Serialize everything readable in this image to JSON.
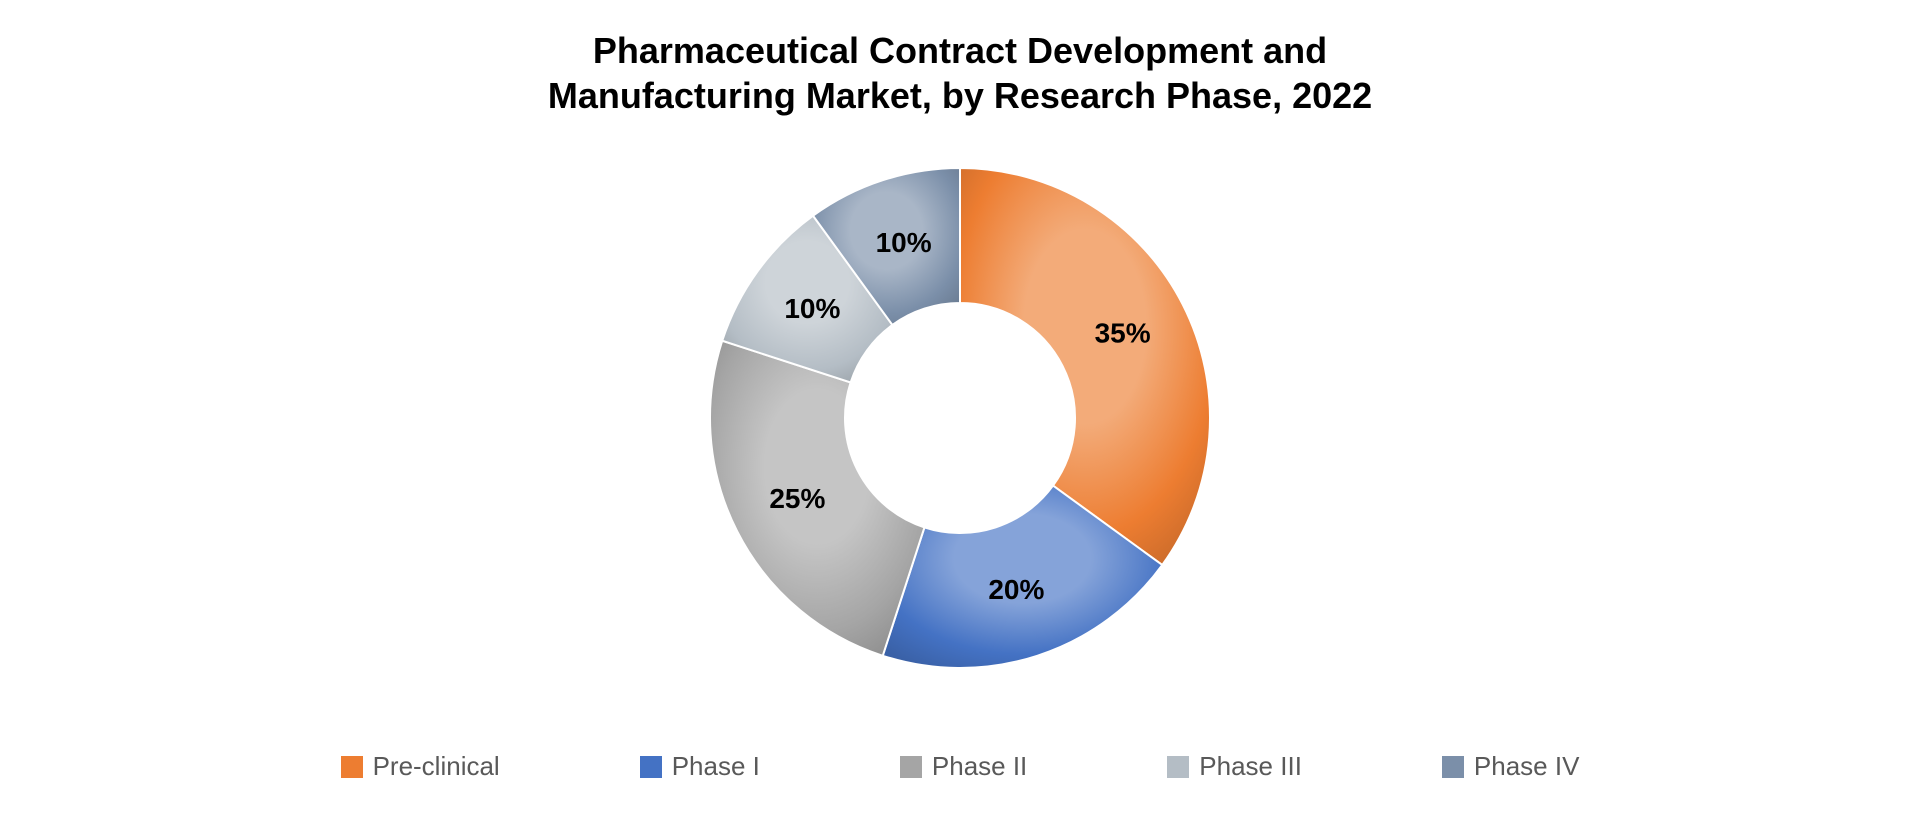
{
  "chart": {
    "type": "donut",
    "title": "Pharmaceutical Contract Development and\nManufacturing Market, by Research Phase, 2022",
    "title_fontsize": 36,
    "title_fontweight": 600,
    "title_color": "#000000",
    "label_fontsize": 28,
    "label_fontweight": 700,
    "label_color": "#000000",
    "legend_fontsize": 26,
    "legend_swatch_size": 22,
    "legend_text_color": "#595959",
    "background_color": "#ffffff",
    "inner_radius": 115,
    "outer_radius": 250,
    "start_angle_deg": 0,
    "direction": "clockwise",
    "slice_separator_color": "#ffffff",
    "slice_separator_width": 2,
    "slices": [
      {
        "name": "Pre-clinical",
        "value": 35,
        "label": "35%",
        "color": "#ed7d31"
      },
      {
        "name": "Phase I",
        "value": 20,
        "label": "20%",
        "color": "#4472c4"
      },
      {
        "name": "Phase II",
        "value": 25,
        "label": "25%",
        "color": "#a5a5a5"
      },
      {
        "name": "Phase III",
        "value": 10,
        "label": "10%",
        "color": "#b4bdc5"
      },
      {
        "name": "Phase IV",
        "value": 10,
        "label": "10%",
        "color": "#7b8fa9"
      }
    ],
    "gradient": {
      "enabled": true,
      "highlight_stop": 0.35,
      "dark_stop": 1.0,
      "highlight_lighten": 0.35,
      "shadow_darken": 0.15
    }
  }
}
